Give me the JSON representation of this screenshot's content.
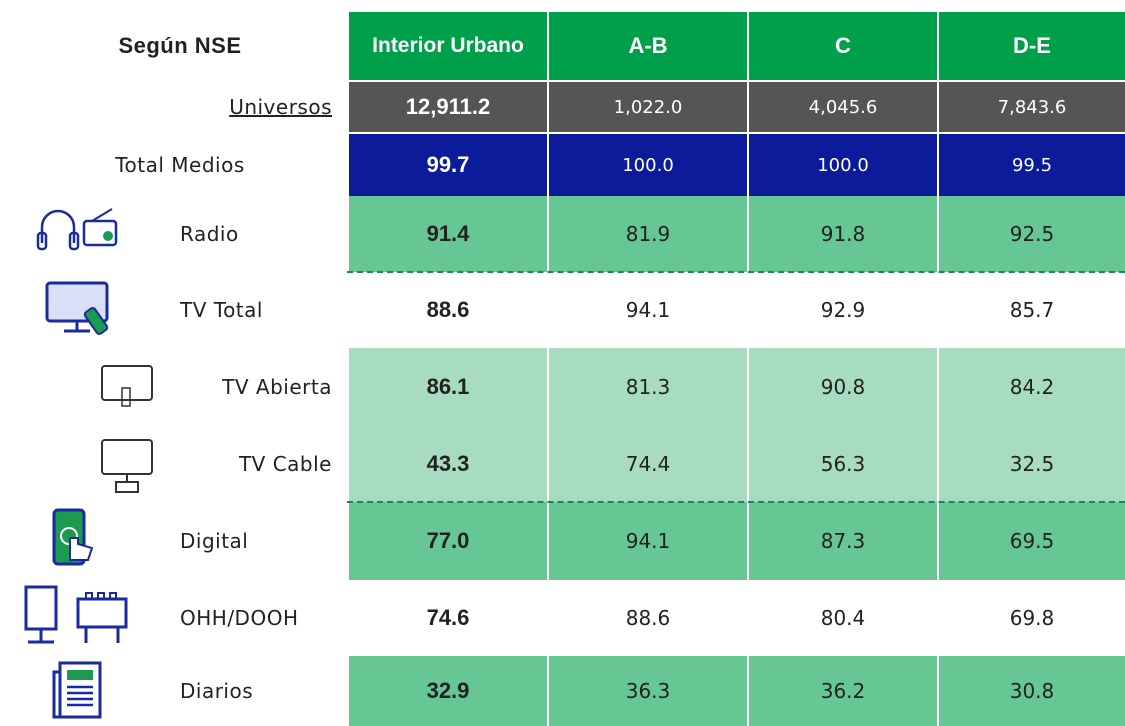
{
  "header": {
    "title": "Según NSE",
    "columns": [
      "Interior Urbano",
      "A-B",
      "C",
      "D-E"
    ]
  },
  "table": {
    "rows": [
      {
        "label": "Universos",
        "values": [
          "12,911.2",
          "1,022.0",
          "4,045.6",
          "7,843.6"
        ]
      },
      {
        "label": "Total Medios",
        "values": [
          "99.7",
          "100.0",
          "100.0",
          "99.5"
        ]
      },
      {
        "label": "Radio",
        "values": [
          "91.4",
          "81.9",
          "91.8",
          "92.5"
        ]
      },
      {
        "label": "TV Total",
        "values": [
          "88.6",
          "94.1",
          "92.9",
          "85.7"
        ]
      },
      {
        "label": "TV Abierta",
        "values": [
          "86.1",
          "81.3",
          "90.8",
          "84.2"
        ]
      },
      {
        "label": "TV Cable",
        "values": [
          "43.3",
          "74.4",
          "56.3",
          "32.5"
        ]
      },
      {
        "label": "Digital",
        "values": [
          "77.0",
          "94.1",
          "87.3",
          "69.5"
        ]
      },
      {
        "label": "OHH/DOOH",
        "values": [
          "74.6",
          "88.6",
          "80.4",
          "69.8"
        ]
      },
      {
        "label": "Diarios",
        "values": [
          "32.9",
          "36.3",
          "36.2",
          "30.8"
        ]
      }
    ]
  }
}
